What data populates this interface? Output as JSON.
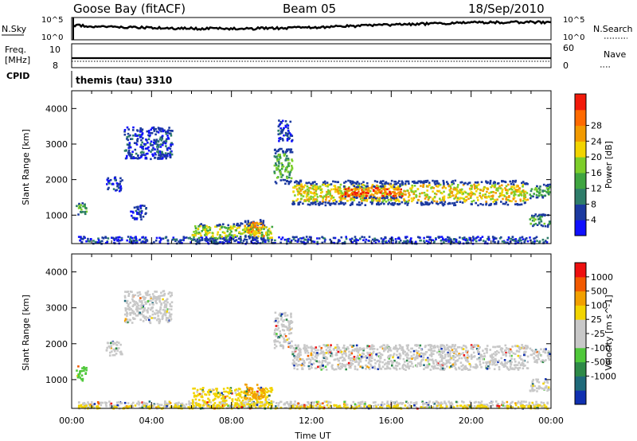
{
  "header": {
    "station": "Goose Bay (fitACF)",
    "beam": "Beam 05",
    "date": "18/Sep/2010"
  },
  "noise_panel": {
    "left_label": "N.Sky",
    "right_label": "N.Search",
    "ticks": [
      "10^5",
      "10^0"
    ]
  },
  "freq_panel": {
    "left_label_top": "Freq.",
    "left_label_unit": "[MHz]",
    "left_ticks": [
      "10",
      "8"
    ],
    "right_label": "Nave",
    "right_ticks": [
      "60",
      "0"
    ]
  },
  "cpid_panel": {
    "label": "CPID",
    "value": "themis (tau) 3310"
  },
  "x_axis": {
    "label": "Time UT",
    "ticks": [
      "00:00",
      "04:00",
      "08:00",
      "12:00",
      "16:00",
      "20:00",
      "00:00"
    ]
  },
  "chart_data": [
    {
      "type": "heatmap",
      "name": "Power",
      "ylabel": "Slant Range [km]",
      "ylim": [
        200,
        4500
      ],
      "yticks": [
        "1000",
        "2000",
        "3000",
        "4000"
      ],
      "colorbar": {
        "label": "Power [dB]",
        "ticks": [
          "4",
          "8",
          "12",
          "16",
          "20",
          "24",
          "28"
        ],
        "colors": [
          "#1010ff",
          "#1c3aa0",
          "#2e7d6a",
          "#3fa540",
          "#7dce2a",
          "#f2d400",
          "#f29a00",
          "#ff6a00",
          "#f21a0a"
        ]
      },
      "regions": [
        {
          "t0": 0.2,
          "t1": 0.7,
          "r0": 1000,
          "r1": 1400,
          "level": 3
        },
        {
          "t0": 0.3,
          "t1": 23.8,
          "r0": 220,
          "r1": 420,
          "level": 1
        },
        {
          "t0": 1.7,
          "t1": 2.5,
          "r0": 1700,
          "r1": 2100,
          "level": 1
        },
        {
          "t0": 2.6,
          "t1": 5.0,
          "r0": 2600,
          "r1": 3500,
          "level": 1
        },
        {
          "t0": 2.9,
          "t1": 3.7,
          "r0": 900,
          "r1": 1300,
          "level": 1
        },
        {
          "t0": 6.0,
          "t1": 10.0,
          "r0": 300,
          "r1": 800,
          "level": 4
        },
        {
          "t0": 8.6,
          "t1": 9.6,
          "r0": 350,
          "r1": 900,
          "level": 6
        },
        {
          "t0": 10.1,
          "t1": 11.0,
          "r0": 1900,
          "r1": 2900,
          "level": 3
        },
        {
          "t0": 10.3,
          "t1": 11.0,
          "r0": 3100,
          "r1": 3700,
          "level": 1
        },
        {
          "t0": 11.0,
          "t1": 22.8,
          "r0": 1300,
          "r1": 2000,
          "level": 5
        },
        {
          "t0": 13.5,
          "t1": 16.5,
          "r0": 1500,
          "r1": 1850,
          "level": 7
        },
        {
          "t0": 22.9,
          "t1": 23.9,
          "r0": 700,
          "r1": 1050,
          "level": 3
        },
        {
          "t0": 22.9,
          "t1": 23.9,
          "r0": 1500,
          "r1": 1900,
          "level": 3
        }
      ]
    },
    {
      "type": "heatmap",
      "name": "Velocity",
      "ylabel": "Slant Range [km]",
      "ylim": [
        200,
        4500
      ],
      "yticks": [
        "1000",
        "2000",
        "3000",
        "4000"
      ],
      "colorbar": {
        "label": "Velocity [m s^-1]",
        "ticks": [
          "1000",
          "500",
          "100",
          "25",
          "-25",
          "-100",
          "-500",
          "-1000"
        ],
        "colors": [
          "#1030b0",
          "#1f6a7a",
          "#2e8a48",
          "#4fc83a",
          "#c8c8c8",
          "#c8c8c8",
          "#f2d400",
          "#f2a000",
          "#f25a00",
          "#ee1010"
        ]
      },
      "regions": [
        {
          "t0": 0.2,
          "t1": 0.7,
          "r0": 1000,
          "r1": 1400,
          "color": "#4fc83a"
        },
        {
          "t0": 0.3,
          "t1": 23.8,
          "r0": 220,
          "r1": 420,
          "color": "#c8c8c8"
        },
        {
          "t0": 0.3,
          "t1": 23.8,
          "r0": 220,
          "r1": 320,
          "color": "#f2d400"
        },
        {
          "t0": 2.6,
          "t1": 5.0,
          "r0": 2600,
          "r1": 3500,
          "color": "#c8c8c8"
        },
        {
          "t0": 1.7,
          "t1": 2.5,
          "r0": 1700,
          "r1": 2100,
          "color": "#c8c8c8"
        },
        {
          "t0": 6.0,
          "t1": 10.0,
          "r0": 300,
          "r1": 800,
          "color": "#f2d400"
        },
        {
          "t0": 8.6,
          "t1": 9.6,
          "r0": 450,
          "r1": 900,
          "color": "#f2a000"
        },
        {
          "t0": 10.1,
          "t1": 11.0,
          "r0": 1900,
          "r1": 2900,
          "color": "#c8c8c8"
        },
        {
          "t0": 11.0,
          "t1": 22.8,
          "r0": 1300,
          "r1": 2000,
          "color": "#c8c8c8"
        },
        {
          "t0": 22.9,
          "t1": 23.9,
          "r0": 700,
          "r1": 1050,
          "color": "#c8c8c8"
        },
        {
          "t0": 22.9,
          "t1": 23.9,
          "r0": 1500,
          "r1": 1900,
          "color": "#c8c8c8"
        }
      ]
    }
  ]
}
